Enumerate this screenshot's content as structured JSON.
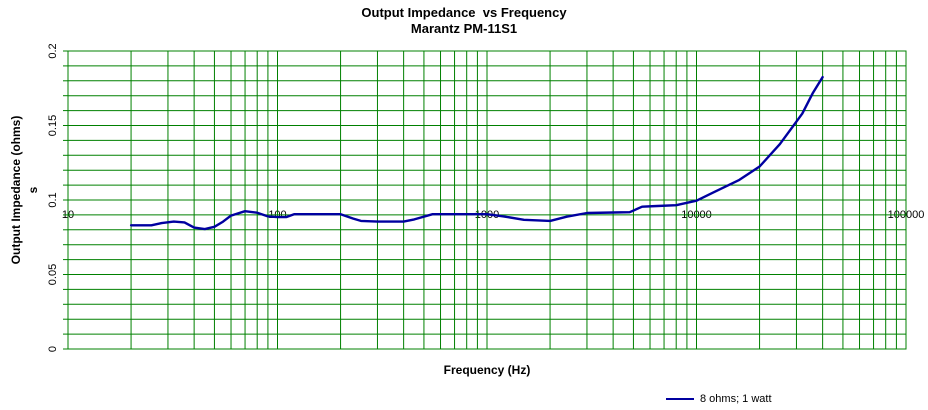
{
  "title": {
    "line1": "Output Impedance  vs Frequency",
    "line2": "Marantz PM-11S1"
  },
  "axes": {
    "y_title": "Output Impedance (ohms)",
    "y_title_overflow": "s",
    "x_title": "Frequency (Hz)"
  },
  "legend": {
    "label": "8 ohms; 1 watt"
  },
  "colors": {
    "background": "#ffffff",
    "grid": "#008000",
    "series": "#0000a0",
    "text": "#000000"
  },
  "chart_data": {
    "type": "line",
    "title": "Output Impedance  vs Frequency",
    "subtitle": "Marantz PM-11S1",
    "xlabel": "Frequency (Hz)",
    "ylabel": "Output Impedance (ohms)",
    "x_scale": "log",
    "xlim": [
      10,
      100000
    ],
    "ylim": [
      0,
      0.2
    ],
    "grid": true,
    "y_gridline_step": 0.01,
    "x_minor_gridlines": "log multiples 2-9 per decade",
    "x_tick_label_row_value": 0.09,
    "legend_position": "bottom-right",
    "x_ticks": [
      {
        "value": 10,
        "label": "10"
      },
      {
        "value": 100,
        "label": "100"
      },
      {
        "value": 1000,
        "label": "1000"
      },
      {
        "value": 10000,
        "label": "10000"
      },
      {
        "value": 100000,
        "label": "100000"
      }
    ],
    "y_ticks": [
      {
        "value": 0,
        "label": "0"
      },
      {
        "value": 0.05,
        "label": "0.05"
      },
      {
        "value": 0.1,
        "label": "0.1"
      },
      {
        "value": 0.15,
        "label": "0.15"
      },
      {
        "value": 0.2,
        "label": "0.2"
      }
    ],
    "series": [
      {
        "name": "8 ohms; 1 watt",
        "color": "#0000a0",
        "points": [
          [
            20,
            0.083
          ],
          [
            25,
            0.083
          ],
          [
            28,
            0.0845
          ],
          [
            32,
            0.0855
          ],
          [
            36,
            0.085
          ],
          [
            40,
            0.0815
          ],
          [
            45,
            0.0805
          ],
          [
            50,
            0.082
          ],
          [
            55,
            0.0855
          ],
          [
            60,
            0.0895
          ],
          [
            70,
            0.0925
          ],
          [
            80,
            0.0915
          ],
          [
            90,
            0.089
          ],
          [
            100,
            0.0885
          ],
          [
            110,
            0.0885
          ],
          [
            120,
            0.0905
          ],
          [
            150,
            0.0905
          ],
          [
            200,
            0.0905
          ],
          [
            230,
            0.0875
          ],
          [
            250,
            0.086
          ],
          [
            300,
            0.0855
          ],
          [
            400,
            0.0855
          ],
          [
            450,
            0.087
          ],
          [
            550,
            0.0905
          ],
          [
            700,
            0.0905
          ],
          [
            1000,
            0.0905
          ],
          [
            1200,
            0.089
          ],
          [
            1500,
            0.0867
          ],
          [
            2000,
            0.086
          ],
          [
            2400,
            0.0888
          ],
          [
            3000,
            0.0913
          ],
          [
            4000,
            0.0916
          ],
          [
            4800,
            0.0918
          ],
          [
            5500,
            0.0955
          ],
          [
            6500,
            0.096
          ],
          [
            8000,
            0.0965
          ],
          [
            10000,
            0.0995
          ],
          [
            12000,
            0.105
          ],
          [
            14000,
            0.1095
          ],
          [
            16000,
            0.1135
          ],
          [
            20000,
            0.1225
          ],
          [
            25000,
            0.1375
          ],
          [
            32000,
            0.158
          ],
          [
            36000,
            0.172
          ],
          [
            40000,
            0.1825
          ]
        ]
      }
    ]
  }
}
